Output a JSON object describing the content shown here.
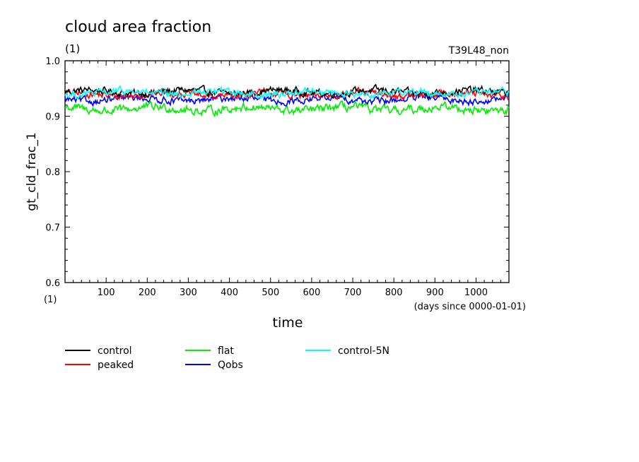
{
  "chart_data": {
    "type": "line",
    "title": "cloud area fraction",
    "title_units": "(1)",
    "run_label": "T39L48_non",
    "ylabel": "gt_cld_frac_1",
    "y_units": "(1)",
    "xlabel": "time",
    "x_units": "(days since 0000-01-01)",
    "xlim": [
      0,
      1080
    ],
    "ylim": [
      0.6,
      1.0
    ],
    "x_ticks": [
      100,
      200,
      300,
      400,
      500,
      600,
      700,
      800,
      900,
      1000
    ],
    "y_ticks": [
      0.6,
      0.7,
      0.8,
      0.9,
      1.0
    ],
    "y_tick_labels": [
      "0.6",
      "0.7",
      "0.8",
      "0.9",
      "1.0"
    ],
    "legend_placement": "bottom",
    "series": [
      {
        "name": "control",
        "color": "#000000",
        "mean": 0.944,
        "amplitude": 0.005
      },
      {
        "name": "peaked",
        "color": "#ff0000",
        "mean": 0.939,
        "amplitude": 0.005
      },
      {
        "name": "flat",
        "color": "#00ee00",
        "mean": 0.913,
        "amplitude": 0.006
      },
      {
        "name": "Qobs",
        "color": "#0000ff",
        "mean": 0.93,
        "amplitude": 0.005
      },
      {
        "name": "control-5N",
        "color": "#00ffff",
        "mean": 0.942,
        "amplitude": 0.005
      }
    ]
  }
}
